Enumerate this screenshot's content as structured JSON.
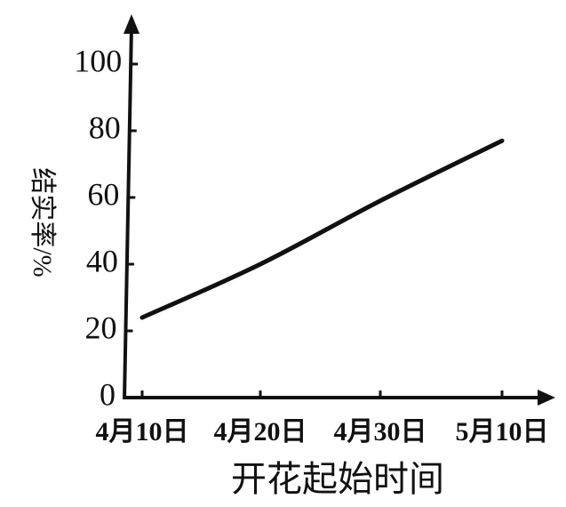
{
  "chart_data": {
    "type": "line",
    "categories": [
      "4月10日",
      "4月20日",
      "4月30日",
      "5月10日"
    ],
    "values": [
      24,
      40,
      59,
      77
    ],
    "color": "#111111",
    "x_label": "开花起始时间",
    "y_label": "结实率/%",
    "ylim": [
      0,
      100
    ],
    "yticks": [
      0,
      20,
      40,
      60,
      80,
      100
    ]
  }
}
